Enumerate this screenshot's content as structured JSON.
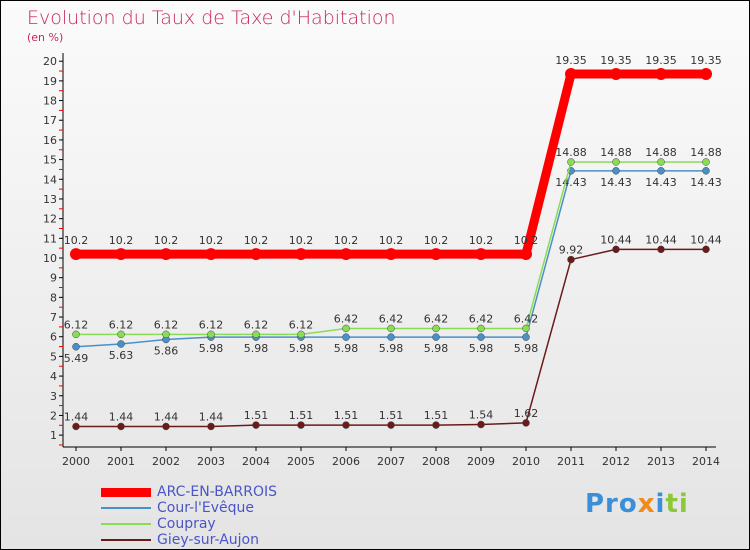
{
  "chart_data": {
    "type": "line",
    "title": "Evolution du Taux de Taxe d'Habitation",
    "subtitle": "(en %)",
    "x": [
      "2000",
      "2001",
      "2002",
      "2003",
      "2004",
      "2005",
      "2006",
      "2007",
      "2008",
      "2009",
      "2010",
      "2011",
      "2012",
      "2013",
      "2014"
    ],
    "ylim": [
      0,
      20
    ],
    "yticks": [
      "1",
      "2",
      "3",
      "4",
      "5",
      "6",
      "7",
      "8",
      "9",
      "10",
      "11",
      "12",
      "13",
      "14",
      "15",
      "16",
      "17",
      "18",
      "19",
      "20"
    ],
    "series": [
      {
        "name": "ARC-EN-BARROIS",
        "color": "#ff0000",
        "values": [
          10.2,
          10.2,
          10.2,
          10.2,
          10.2,
          10.2,
          10.2,
          10.2,
          10.2,
          10.2,
          10.2,
          19.35,
          19.35,
          19.35,
          19.35
        ]
      },
      {
        "name": "Cour-l'Evêque",
        "color": "#4a90c8",
        "values": [
          5.49,
          5.63,
          5.86,
          5.98,
          5.98,
          5.98,
          5.98,
          5.98,
          5.98,
          5.98,
          5.98,
          14.43,
          14.43,
          14.43,
          14.43
        ]
      },
      {
        "name": "Coupray",
        "color": "#88dd55",
        "values": [
          6.12,
          6.12,
          6.12,
          6.12,
          6.12,
          6.12,
          6.42,
          6.42,
          6.42,
          6.42,
          6.42,
          14.88,
          14.88,
          14.88,
          14.88
        ]
      },
      {
        "name": "Giey-sur-Aujon",
        "color": "#6b1a1a",
        "values": [
          1.44,
          1.44,
          1.44,
          1.44,
          1.51,
          1.51,
          1.51,
          1.51,
          1.51,
          1.54,
          1.62,
          9.92,
          10.44,
          10.44,
          10.44
        ]
      }
    ]
  },
  "logo": "Proxiti"
}
